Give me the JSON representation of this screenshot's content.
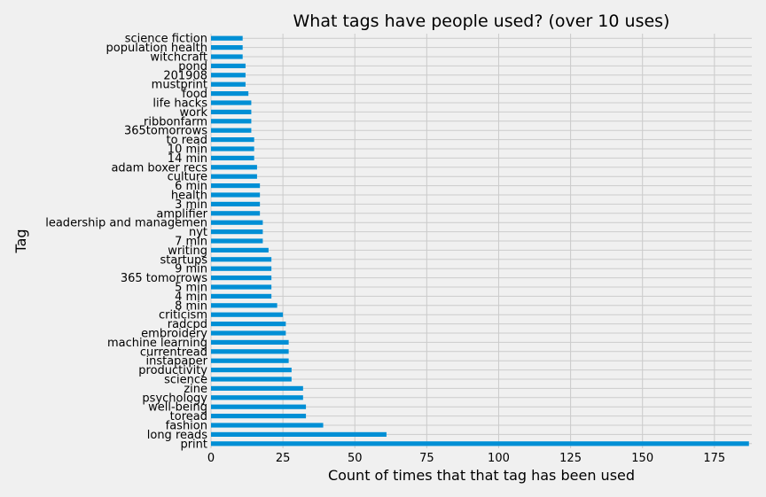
{
  "chart_data": {
    "type": "bar",
    "orientation": "horizontal",
    "title": "What tags have people used? (over 10 uses)",
    "xlabel": "Count of times that that tag has been used",
    "ylabel": "Tag",
    "xlim": [
      0,
      188
    ],
    "xticks": [
      0,
      25,
      50,
      75,
      100,
      125,
      150,
      175
    ],
    "grid": true,
    "categories": [
      "print",
      "long reads",
      "fashion",
      "toread",
      "well-being",
      "psychology",
      "zine",
      "science",
      "productivity",
      "instapaper",
      "currentread",
      "machine learning",
      "embroidery",
      "radcpd",
      "criticism",
      "8 min",
      "4 min",
      "5 min",
      "365 tomorrows",
      "9 min",
      "startups",
      "writing",
      "7 min",
      "nyt",
      "leadership and managemen",
      "amplifier",
      "3 min",
      "health",
      "6 min",
      "culture",
      "adam boxer recs",
      "14 min",
      "10 min",
      "to read",
      "365tomorrows",
      "ribbonfarm",
      "work",
      "life hacks",
      "food",
      "mustprint",
      "201908",
      "pond",
      "witchcraft",
      "population health",
      "science fiction"
    ],
    "values": [
      187,
      61,
      39,
      33,
      33,
      32,
      32,
      28,
      28,
      27,
      27,
      27,
      26,
      26,
      25,
      23,
      21,
      21,
      21,
      21,
      21,
      20,
      18,
      18,
      18,
      17,
      17,
      17,
      17,
      16,
      16,
      15,
      15,
      15,
      14,
      14,
      14,
      14,
      13,
      12,
      12,
      12,
      11,
      11,
      11
    ],
    "colors": {
      "bar": "#008fd5",
      "background": "#f0f0f0",
      "grid": "#cbcbcb"
    }
  }
}
